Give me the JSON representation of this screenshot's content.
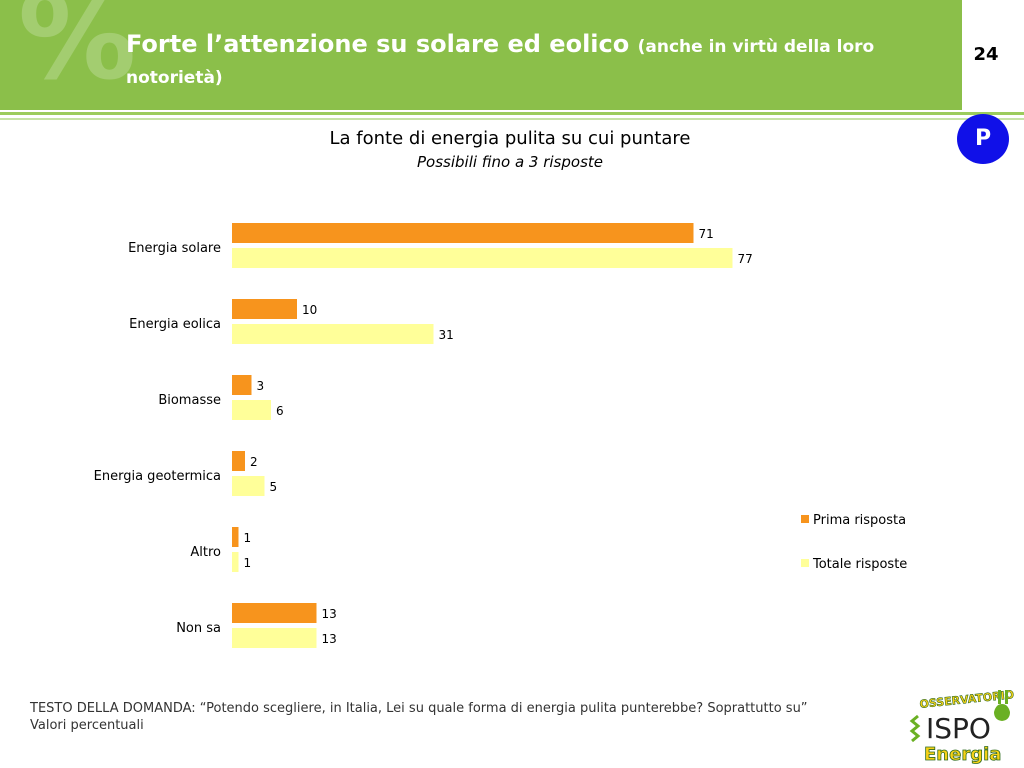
{
  "header": {
    "title_main": "Forte l’attenzione su solare ed eolico",
    "title_sub": "(anche in virtù della loro notorietà)",
    "page_number": "24",
    "badge": "P",
    "decoration_symbol": "%"
  },
  "chart_data": {
    "type": "bar",
    "orientation": "horizontal",
    "title": "La fonte di energia pulita su cui puntare",
    "subtitle": "Possibili fino a 3 risposte",
    "categories": [
      "Energia solare",
      "Energia eolica",
      "Biomasse",
      "Energia geotermica",
      "Altro",
      "Non sa"
    ],
    "series": [
      {
        "name": "Prima risposta",
        "color": "#f7941d",
        "values": [
          71,
          10,
          3,
          2,
          1,
          13
        ]
      },
      {
        "name": "Totale risposte",
        "color": "#ffff99",
        "values": [
          77,
          31,
          6,
          5,
          1,
          13
        ]
      }
    ],
    "xlim": [
      0,
      100
    ],
    "grid": false,
    "legend_position": "right"
  },
  "footer": {
    "question": "TESTO DELLA DOMANDA: “Potendo scegliere, in Italia, Lei su quale forma di energia pulita punterebbe?  Soprattutto su”",
    "note": "Valori percentuali"
  },
  "logo": {
    "top_text": "OSSERVATORIO",
    "middle_text": "ISPO",
    "bottom_text": "Energia",
    "icon": "plug-icon"
  }
}
